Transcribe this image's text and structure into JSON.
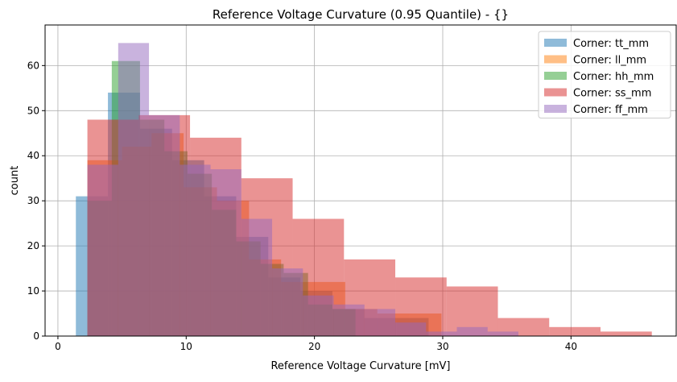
{
  "chart_data": {
    "type": "histogram",
    "title": "Reference Voltage Curvature (0.95 Quantile) - {}",
    "xlabel": "Reference Voltage Curvature [mV]",
    "ylabel": "count",
    "xlim": [
      -1,
      48.2
    ],
    "ylim": [
      0,
      69
    ],
    "xticks": [
      0,
      10,
      20,
      30,
      40
    ],
    "yticks": [
      0,
      10,
      20,
      30,
      40,
      50,
      60
    ],
    "grid": true,
    "legend_position": "top-right",
    "alpha": 0.5,
    "series": [
      {
        "name": "Corner: tt_mm",
        "color": "#1f77b4",
        "bin_edges": [
          1.4,
          3.9,
          6.4,
          8.9,
          11.4,
          13.9,
          16.4,
          18.9,
          21.4,
          23.9,
          26.4,
          28.9
        ],
        "counts": [
          31,
          54,
          46,
          39,
          31,
          22,
          13,
          10,
          6,
          4,
          4
        ]
      },
      {
        "name": "Corner: ll_mm",
        "color": "#ff7f0e",
        "bin_edges": [
          2.3,
          5.0,
          7.3,
          9.8,
          12.4,
          14.9,
          17.4,
          19.9,
          22.4,
          24.9,
          27.4,
          29.9
        ],
        "counts": [
          39,
          42,
          45,
          33,
          30,
          17,
          12,
          12,
          6,
          5,
          5
        ]
      },
      {
        "name": "Corner: hh_mm",
        "color": "#2ca02c",
        "bin_edges": [
          2.3,
          4.2,
          6.4,
          8.3,
          10.1,
          12.0,
          13.9,
          15.8,
          17.6,
          19.5,
          21.4,
          23.2
        ],
        "counts": [
          30,
          61,
          48,
          41,
          36,
          28,
          21,
          16,
          14,
          7,
          6
        ]
      },
      {
        "name": "Corner: ss_mm",
        "color": "#d62728",
        "bin_edges": [
          2.3,
          6.3,
          10.3,
          14.3,
          18.3,
          22.3,
          26.3,
          30.3,
          34.3,
          38.3,
          42.3,
          46.3
        ],
        "counts": [
          48,
          49,
          44,
          35,
          26,
          17,
          13,
          11,
          4,
          2,
          1
        ]
      },
      {
        "name": "Corner: ff_mm",
        "color": "#9467bd",
        "bin_edges": [
          2.3,
          4.7,
          7.1,
          9.5,
          11.9,
          14.3,
          16.7,
          19.1,
          21.5,
          23.9,
          26.3,
          28.7,
          31.1,
          33.5,
          35.9
        ],
        "counts": [
          38,
          65,
          49,
          38,
          37,
          26,
          15,
          9,
          7,
          6,
          3,
          1,
          2,
          1
        ]
      }
    ]
  }
}
